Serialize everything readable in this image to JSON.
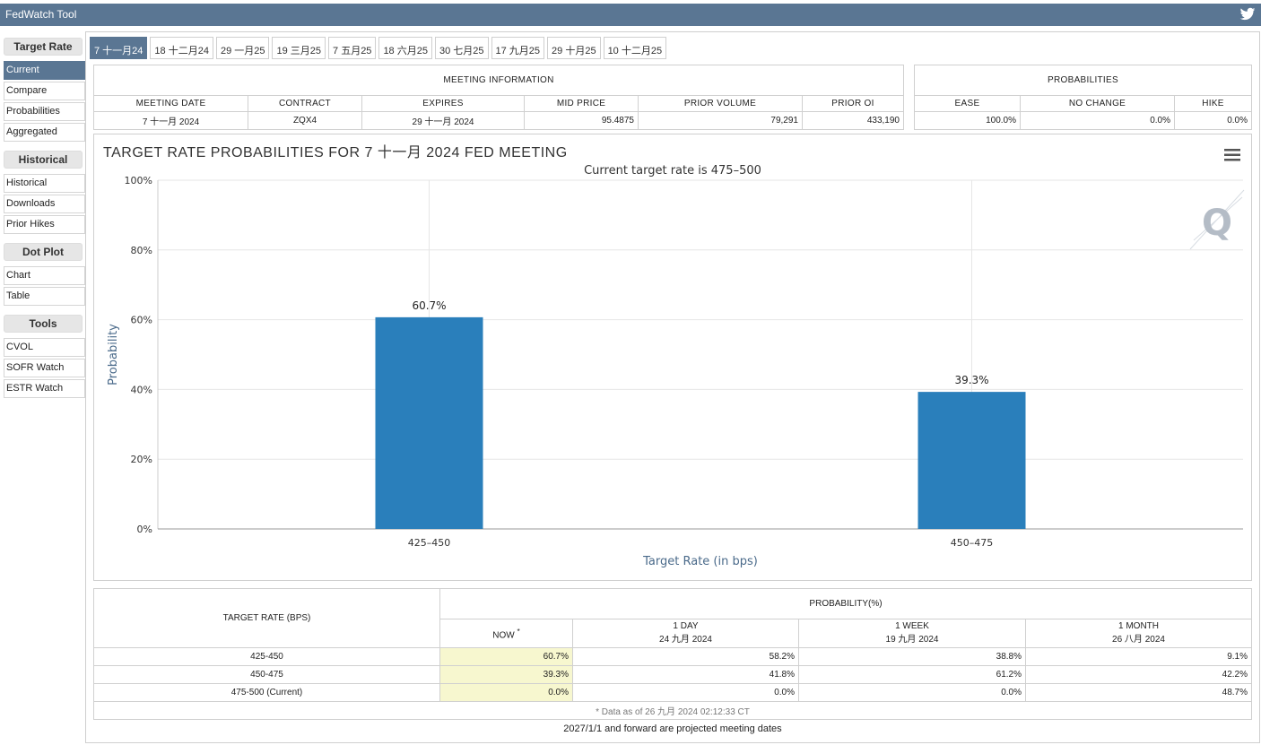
{
  "app": {
    "title": "FedWatch Tool"
  },
  "sidebar": {
    "sections": [
      {
        "heading": "Target Rate",
        "items": [
          "Current",
          "Compare",
          "Probabilities",
          "Aggregated"
        ]
      },
      {
        "heading": "Historical",
        "items": [
          "Historical",
          "Downloads",
          "Prior Hikes"
        ]
      },
      {
        "heading": "Dot Plot",
        "items": [
          "Chart",
          "Table"
        ]
      },
      {
        "heading": "Tools",
        "items": [
          "CVOL",
          "SOFR Watch",
          "ESTR Watch"
        ]
      }
    ]
  },
  "tabs": [
    "7 十一月24",
    "18 十二月24",
    "29 一月25",
    "19 三月25",
    "7 五月25",
    "18 六月25",
    "30 七月25",
    "17 九月25",
    "29 十月25",
    "10 十二月25"
  ],
  "meeting_info": {
    "heading": "MEETING INFORMATION",
    "columns": [
      "MEETING DATE",
      "CONTRACT",
      "EXPIRES",
      "MID PRICE",
      "PRIOR VOLUME",
      "PRIOR OI"
    ],
    "values": [
      "7 十一月 2024",
      "ZQX4",
      "29 十一月 2024",
      "95.4875",
      "79,291",
      "433,190"
    ]
  },
  "probabilities": {
    "heading": "PROBABILITIES",
    "columns": [
      "EASE",
      "NO CHANGE",
      "HIKE"
    ],
    "values": [
      "100.0%",
      "0.0%",
      "0.0%"
    ]
  },
  "chart": {
    "title": "TARGET RATE PROBABILITIES FOR 7 十一月 2024 FED MEETING",
    "subtitle": "Current target rate is 475–500",
    "watermark": "Q"
  },
  "chart_data": {
    "type": "bar",
    "categories": [
      "425–450",
      "450–475"
    ],
    "values": [
      60.7,
      39.3
    ],
    "value_labels": [
      "60.7%",
      "39.3%"
    ],
    "xlabel": "Target Rate (in bps)",
    "ylabel": "Probability",
    "ylim": [
      0,
      100
    ],
    "yticks": [
      "0%",
      "20%",
      "40%",
      "60%",
      "80%",
      "100%"
    ],
    "bar_color": "#2a7fbb",
    "grid": true
  },
  "prob_table": {
    "target_header": "TARGET RATE (BPS)",
    "prob_header": "PROBABILITY(%)",
    "now_header": "NOW",
    "now_mark": "*",
    "cols": [
      {
        "label": "1 DAY",
        "date": "24 九月 2024"
      },
      {
        "label": "1 WEEK",
        "date": "19 九月 2024"
      },
      {
        "label": "1 MONTH",
        "date": "26 八月 2024"
      }
    ],
    "rows": [
      {
        "rate": "425-450",
        "now": "60.7%",
        "day": "58.2%",
        "week": "38.8%",
        "month": "9.1%"
      },
      {
        "rate": "450-475",
        "now": "39.3%",
        "day": "41.8%",
        "week": "61.2%",
        "month": "42.2%"
      },
      {
        "rate": "475-500 (Current)",
        "now": "0.0%",
        "day": "0.0%",
        "week": "0.0%",
        "month": "48.7%"
      }
    ],
    "note": "* Data as of 26 九月 2024 02:12:33 CT"
  },
  "footer": "2027/1/1 and forward are projected meeting dates",
  "colors": {
    "accent": "#5a7693",
    "now_highlight": "#f7f7cf"
  }
}
